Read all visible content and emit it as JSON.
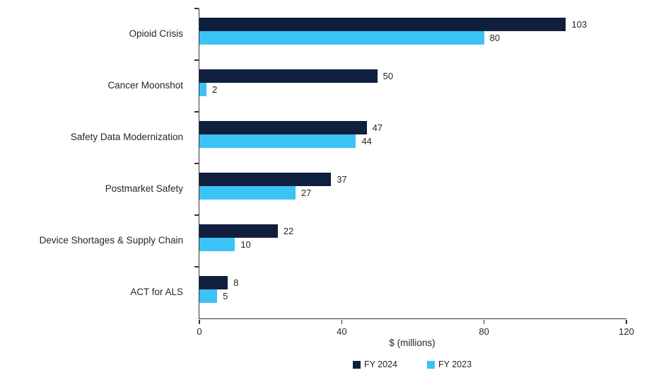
{
  "chart_data": {
    "type": "bar",
    "orientation": "horizontal",
    "title": "",
    "categories": [
      "Opioid Crisis",
      "Cancer Moonshot",
      "Safety Data Modernization",
      "Postmarket Safety",
      "Device Shortages & Supply Chain",
      "ACT for ALS"
    ],
    "series": [
      {
        "name": "FY 2024",
        "color": "#101f3d",
        "values": [
          103,
          50,
          47,
          37,
          22,
          8
        ]
      },
      {
        "name": "FY 2023",
        "color": "#3cc3f5",
        "values": [
          80,
          2,
          44,
          27,
          10,
          5
        ]
      }
    ],
    "xlabel": "$ (millions)",
    "ylabel": "",
    "xlim": [
      0,
      120
    ],
    "xticks": [
      0,
      40,
      80,
      120
    ],
    "grid": false,
    "data_labels": true,
    "legend_position": "bottom"
  }
}
